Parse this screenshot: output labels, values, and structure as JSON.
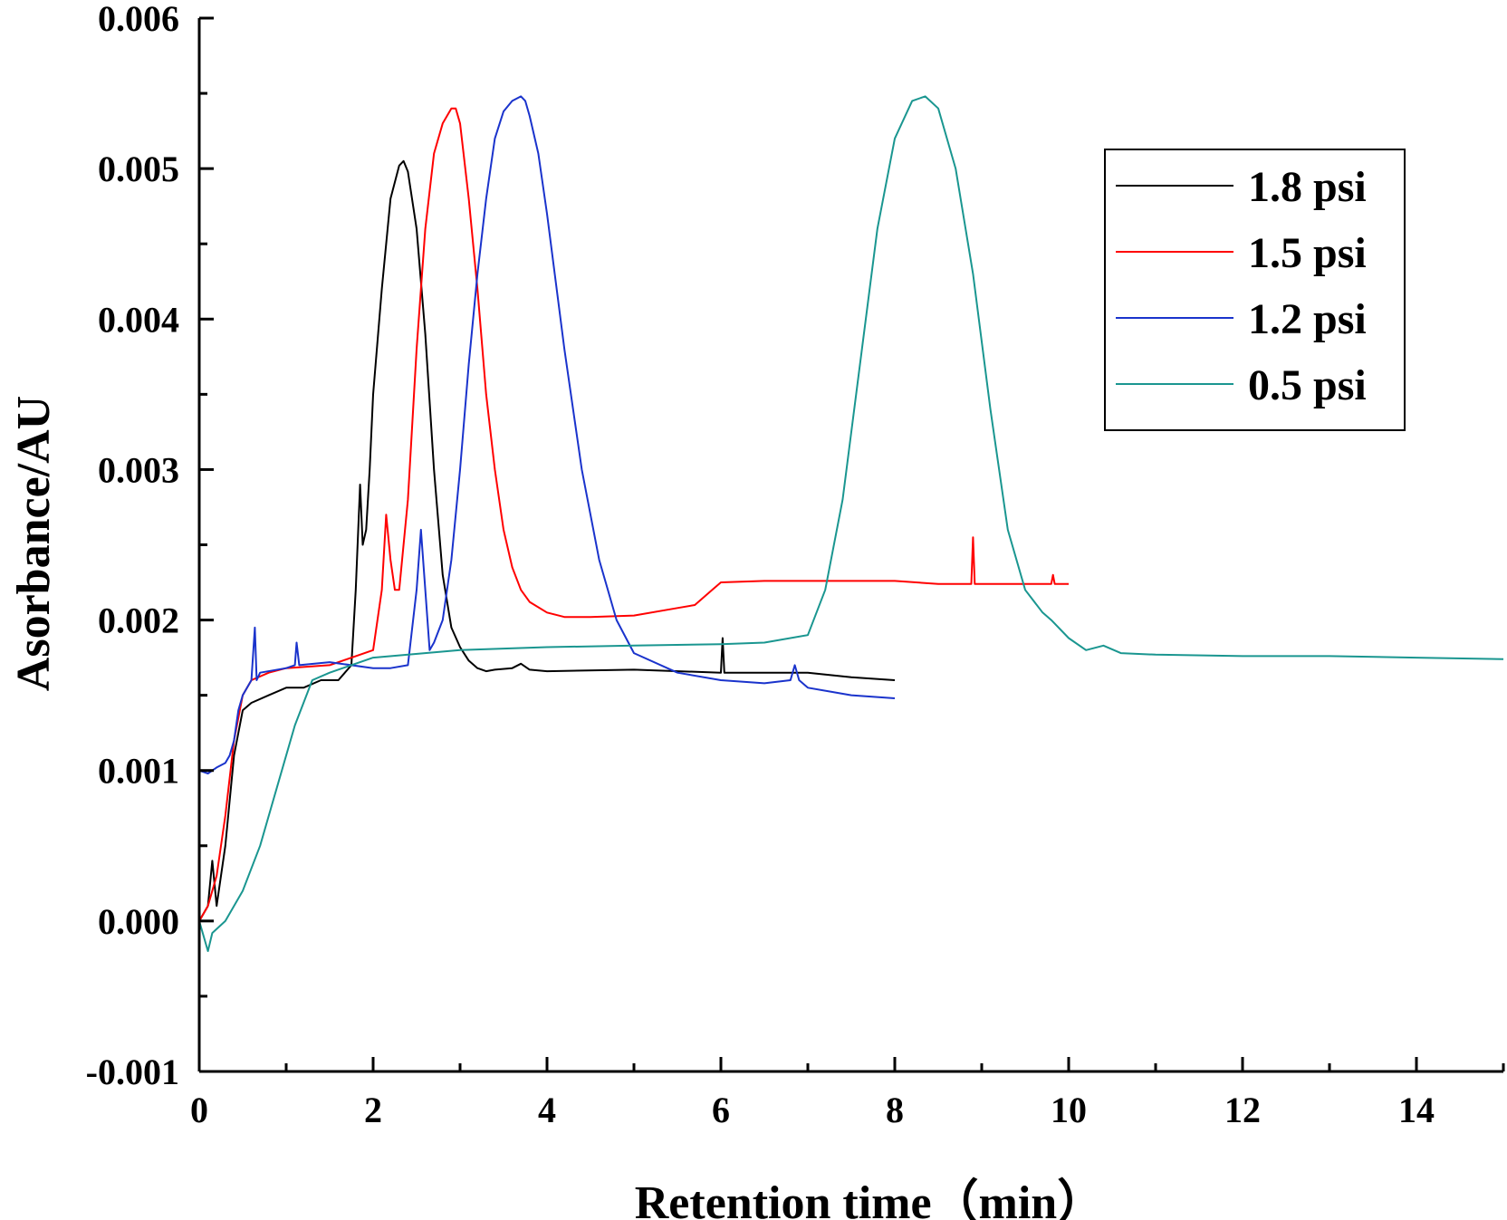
{
  "chart_data": {
    "type": "line",
    "xlabel": "Retention time（min）",
    "ylabel": "Asorbance/AU",
    "xlim": [
      0,
      15
    ],
    "ylim": [
      -0.001,
      0.006
    ],
    "x_ticks": [
      "0",
      "2",
      "4",
      "6",
      "8",
      "10",
      "12",
      "14"
    ],
    "y_ticks": [
      "-0.001",
      "0.000",
      "0.001",
      "0.002",
      "0.003",
      "0.004",
      "0.005",
      "0.006"
    ],
    "grid": false,
    "legend_position": "top-right",
    "series": [
      {
        "name": "1.8 psi",
        "color": "#000000",
        "x": [
          0,
          0.1,
          0.15,
          0.2,
          0.3,
          0.4,
          0.5,
          0.6,
          0.8,
          1.0,
          1.2,
          1.4,
          1.6,
          1.75,
          1.8,
          1.85,
          1.88,
          1.92,
          1.96,
          2.0,
          2.1,
          2.2,
          2.3,
          2.35,
          2.4,
          2.5,
          2.6,
          2.7,
          2.8,
          2.9,
          3.0,
          3.1,
          3.2,
          3.3,
          3.4,
          3.6,
          3.7,
          3.8,
          4.0,
          5.0,
          6.0,
          6.02,
          6.04,
          7.0,
          7.5,
          8.0
        ],
        "y": [
          0.0,
          0.0001,
          0.0004,
          0.0001,
          0.0005,
          0.0011,
          0.0014,
          0.00145,
          0.0015,
          0.00155,
          0.00155,
          0.0016,
          0.0016,
          0.0017,
          0.0022,
          0.0029,
          0.0025,
          0.0026,
          0.003,
          0.0035,
          0.0042,
          0.0048,
          0.00502,
          0.00505,
          0.00498,
          0.0046,
          0.0039,
          0.003,
          0.0023,
          0.00195,
          0.00182,
          0.00173,
          0.00168,
          0.00166,
          0.00167,
          0.00168,
          0.00171,
          0.00167,
          0.00166,
          0.00167,
          0.00165,
          0.00188,
          0.00165,
          0.00165,
          0.00162,
          0.0016
        ]
      },
      {
        "name": "1.5 psi",
        "color": "#ff0000",
        "x": [
          0,
          0.1,
          0.2,
          0.3,
          0.4,
          0.5,
          0.6,
          0.8,
          1.0,
          1.5,
          2.0,
          2.1,
          2.15,
          2.2,
          2.25,
          2.3,
          2.4,
          2.5,
          2.6,
          2.7,
          2.8,
          2.9,
          2.95,
          3.0,
          3.1,
          3.2,
          3.3,
          3.4,
          3.5,
          3.6,
          3.7,
          3.8,
          4.0,
          4.2,
          4.5,
          5.0,
          5.5,
          5.7,
          5.9,
          6.0,
          6.5,
          7.0,
          7.5,
          8.0,
          8.5,
          8.88,
          8.9,
          8.92,
          9.0,
          9.5,
          9.8,
          9.82,
          9.84,
          10.0
        ],
        "y": [
          0.0,
          0.0001,
          0.0003,
          0.0007,
          0.0012,
          0.0015,
          0.0016,
          0.00165,
          0.00168,
          0.0017,
          0.0018,
          0.0022,
          0.0027,
          0.0024,
          0.0022,
          0.0022,
          0.0028,
          0.0038,
          0.0046,
          0.0051,
          0.0053,
          0.0054,
          0.0054,
          0.0053,
          0.0048,
          0.0042,
          0.0035,
          0.003,
          0.0026,
          0.00235,
          0.0022,
          0.00212,
          0.00205,
          0.00202,
          0.00202,
          0.00203,
          0.00208,
          0.0021,
          0.0022,
          0.00225,
          0.00226,
          0.00226,
          0.00226,
          0.00226,
          0.00224,
          0.00224,
          0.00255,
          0.00224,
          0.00224,
          0.00224,
          0.00224,
          0.0023,
          0.00224,
          0.00224
        ]
      },
      {
        "name": "1.2 psi",
        "color": "#1a33cc",
        "x": [
          0,
          0.1,
          0.2,
          0.3,
          0.35,
          0.4,
          0.45,
          0.5,
          0.6,
          0.64,
          0.66,
          0.7,
          1.0,
          1.1,
          1.12,
          1.15,
          1.5,
          2.0,
          2.2,
          2.4,
          2.5,
          2.55,
          2.6,
          2.65,
          2.7,
          2.8,
          2.9,
          3.0,
          3.1,
          3.2,
          3.3,
          3.4,
          3.5,
          3.6,
          3.7,
          3.75,
          3.8,
          3.9,
          4.0,
          4.2,
          4.4,
          4.6,
          4.8,
          5.0,
          5.5,
          6.0,
          6.5,
          6.8,
          6.85,
          6.9,
          7.0,
          7.5,
          8.0
        ],
        "y": [
          0.001,
          0.00098,
          0.00102,
          0.00105,
          0.0011,
          0.0012,
          0.0014,
          0.0015,
          0.0016,
          0.00195,
          0.0016,
          0.00165,
          0.00168,
          0.0017,
          0.00185,
          0.0017,
          0.00172,
          0.00168,
          0.00168,
          0.0017,
          0.0022,
          0.0026,
          0.0022,
          0.0018,
          0.00185,
          0.002,
          0.0024,
          0.003,
          0.0037,
          0.0043,
          0.0048,
          0.0052,
          0.00538,
          0.00545,
          0.00548,
          0.00545,
          0.00535,
          0.0051,
          0.0047,
          0.0038,
          0.003,
          0.0024,
          0.002,
          0.00178,
          0.00165,
          0.0016,
          0.00158,
          0.0016,
          0.0017,
          0.0016,
          0.00155,
          0.0015,
          0.00148
        ]
      },
      {
        "name": "0.5 psi",
        "color": "#1a9690",
        "x": [
          0,
          0.1,
          0.15,
          0.3,
          0.5,
          0.7,
          0.9,
          1.1,
          1.3,
          1.5,
          2.0,
          3.0,
          4.0,
          5.0,
          6.0,
          6.5,
          7.0,
          7.2,
          7.4,
          7.6,
          7.8,
          8.0,
          8.2,
          8.35,
          8.5,
          8.7,
          8.9,
          9.1,
          9.3,
          9.5,
          9.7,
          9.8,
          10.0,
          10.2,
          10.4,
          10.6,
          11.0,
          12.0,
          13.0,
          14.0,
          15.0
        ],
        "y": [
          0.0,
          -0.0002,
          -8e-05,
          0.0,
          0.0002,
          0.0005,
          0.0009,
          0.0013,
          0.0016,
          0.00165,
          0.00175,
          0.0018,
          0.00182,
          0.00183,
          0.00184,
          0.00185,
          0.0019,
          0.0022,
          0.0028,
          0.0037,
          0.0046,
          0.0052,
          0.00545,
          0.00548,
          0.0054,
          0.005,
          0.0043,
          0.0034,
          0.0026,
          0.0022,
          0.00205,
          0.002,
          0.00188,
          0.0018,
          0.00183,
          0.00178,
          0.00177,
          0.00176,
          0.00176,
          0.00175,
          0.00174
        ]
      }
    ]
  }
}
